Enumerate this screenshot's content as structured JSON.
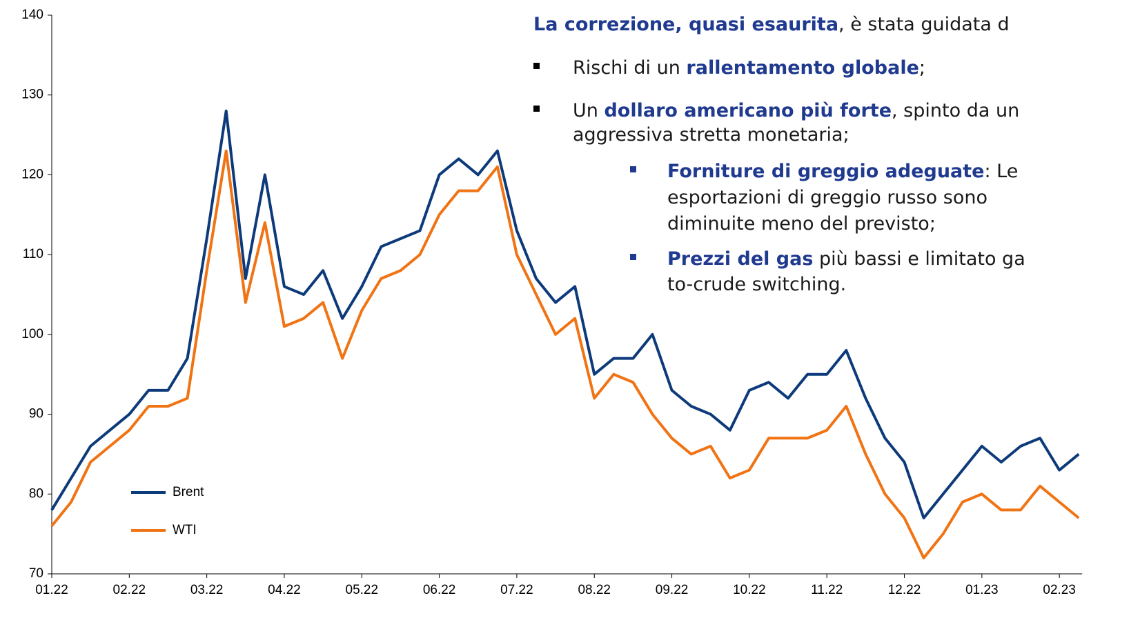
{
  "chart_data": {
    "type": "line",
    "categories": [
      "01.22",
      null,
      null,
      null,
      "02.22",
      null,
      null,
      null,
      "03.22",
      null,
      null,
      null,
      "04.22",
      null,
      null,
      null,
      "05.22",
      null,
      null,
      null,
      "06.22",
      null,
      null,
      null,
      "07.22",
      null,
      null,
      null,
      "08.22",
      null,
      null,
      null,
      "09.22",
      null,
      null,
      null,
      "10.22",
      null,
      null,
      null,
      "11.22",
      null,
      null,
      null,
      "12.22",
      null,
      null,
      null,
      "01.23",
      null,
      null,
      null,
      "02.23",
      null
    ],
    "series": [
      {
        "name": "Brent",
        "color": "#0d3a7a",
        "values": [
          78,
          82,
          86,
          88,
          90,
          93,
          93,
          97,
          112,
          128,
          107,
          120,
          106,
          105,
          108,
          102,
          106,
          111,
          112,
          113,
          120,
          122,
          120,
          123,
          113,
          107,
          104,
          106,
          95,
          97,
          97,
          100,
          93,
          91,
          90,
          88,
          93,
          94,
          92,
          95,
          95,
          98,
          92,
          87,
          84,
          77,
          80,
          83,
          86,
          84,
          86,
          87,
          83,
          85
        ]
      },
      {
        "name": "WTI",
        "color": "#f07314",
        "values": [
          76,
          79,
          84,
          86,
          88,
          91,
          91,
          92,
          108,
          123,
          104,
          114,
          101,
          102,
          104,
          97,
          103,
          107,
          108,
          110,
          115,
          118,
          118,
          121,
          110,
          105,
          100,
          102,
          92,
          95,
          94,
          90,
          87,
          85,
          86,
          82,
          83,
          87,
          87,
          87,
          88,
          91,
          85,
          80,
          77,
          72,
          75,
          79,
          80,
          78,
          78,
          81,
          79,
          77
        ]
      }
    ],
    "ylim": [
      70,
      140
    ],
    "yticks": [
      70,
      80,
      90,
      100,
      110,
      120,
      130,
      140
    ],
    "legend": "lower left",
    "annotations": [
      [
        {
          "text": "La correzione, quasi esaurita",
          "bold": true
        },
        {
          "text": ", è stata guidata d",
          "bold": false
        }
      ],
      [
        {
          "text": "Rischi di un ",
          "bold": false
        },
        {
          "text": "rallentamento globale",
          "bold": true
        },
        {
          "text": ";",
          "bold": false
        }
      ],
      [
        {
          "text": "Un ",
          "bold": false
        },
        {
          "text": "dollaro americano più forte",
          "bold": true
        },
        {
          "text": ", spinto da un",
          "bold": false
        }
      ],
      [
        {
          "text": "aggressiva stretta monetaria;",
          "bold": false
        }
      ],
      [
        {
          "text": "Forniture di greggio adeguate",
          "bold": true
        },
        {
          "text": ": Le",
          "bold": false
        }
      ],
      [
        {
          "text": "esportazioni di greggio russo sono",
          "bold": false
        }
      ],
      [
        {
          "text": "diminuite meno del previsto;",
          "bold": false
        }
      ],
      [
        {
          "text": "Prezzi del gas",
          "bold": true
        },
        {
          "text": " più bassi e limitato ga",
          "bold": false
        }
      ],
      [
        {
          "text": "to-crude switching.",
          "bold": false
        }
      ]
    ]
  }
}
